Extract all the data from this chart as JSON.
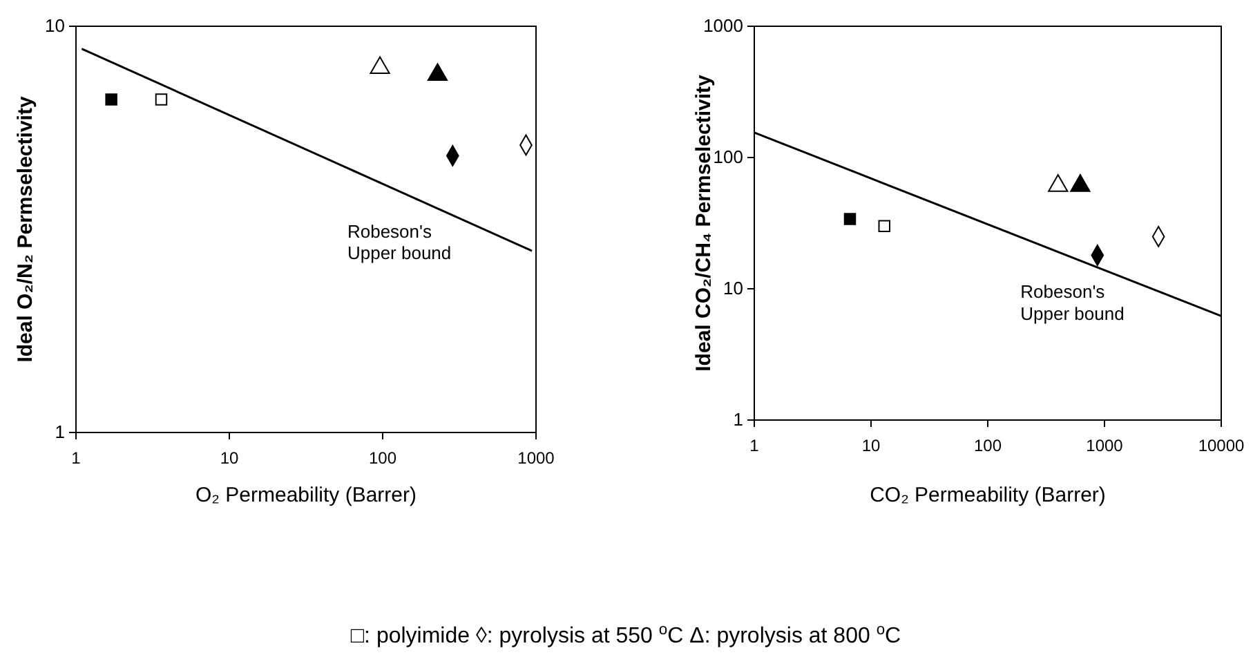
{
  "chart_data": [
    {
      "type": "scatter",
      "xlabel": "O₂ Permeability (Barrer)",
      "ylabel": "Ideal O₂/N₂ Permselectivity",
      "log": "xy",
      "xlim": [
        1,
        1000
      ],
      "ylim": [
        1,
        10
      ],
      "xticks": [
        1,
        10,
        100,
        1000
      ],
      "yticks": [
        1,
        10
      ],
      "grid": false,
      "series": [
        {
          "marker": "square",
          "color": "#000000",
          "x": [
            1.7
          ],
          "values": [
            6.6
          ]
        },
        {
          "marker": "square",
          "color": "#ffffff",
          "x": [
            3.6
          ],
          "values": [
            6.6
          ]
        },
        {
          "marker": "triangle",
          "color": "#ffffff",
          "x": [
            96
          ],
          "values": [
            7.9
          ]
        },
        {
          "marker": "triangle",
          "color": "#000000",
          "x": [
            228
          ],
          "values": [
            7.6
          ]
        },
        {
          "marker": "diamond",
          "color": "#000000",
          "x": [
            286
          ],
          "values": [
            4.8
          ]
        },
        {
          "marker": "diamond",
          "color": "#ffffff",
          "x": [
            860
          ],
          "values": [
            5.1
          ]
        },
        {
          "type": "line",
          "color": "#000000",
          "x": [
            1.09,
            940
          ],
          "values": [
            8.8,
            2.8
          ]
        }
      ],
      "annotations": [
        "Robeson's\nUpper bound",
        "□: polyimide   ◊: pyrolysis at 550 $^{o}$C  Δ: pyrolysis at 800 $^{o}$C"
      ]
    },
    {
      "type": "scatter",
      "xlabel": "CO₂ Permeability (Barrer)",
      "ylabel": "Ideal CO₂/CH₄ Permselectivity",
      "log": "xy",
      "xlim": [
        1,
        10000
      ],
      "ylim": [
        1,
        1000
      ],
      "xticks": [
        1,
        10,
        100,
        1000,
        10000
      ],
      "yticks": [
        1,
        10,
        100,
        1000
      ],
      "grid": false,
      "series": [
        {
          "marker": "square",
          "color": "#000000",
          "x": [
            6.6
          ],
          "values": [
            34
          ]
        },
        {
          "marker": "square",
          "color": "#ffffff",
          "x": [
            13
          ],
          "values": [
            30
          ]
        },
        {
          "marker": "triangle",
          "color": "#ffffff",
          "x": [
            400
          ],
          "values": [
            61
          ]
        },
        {
          "marker": "triangle",
          "color": "#000000",
          "x": [
            620
          ],
          "values": [
            61
          ]
        },
        {
          "marker": "diamond",
          "color": "#000000",
          "x": [
            870
          ],
          "values": [
            18
          ]
        },
        {
          "marker": "diamond",
          "color": "#ffffff",
          "x": [
            2900
          ],
          "values": [
            25
          ]
        },
        {
          "type": "line",
          "color": "#000000",
          "x": [
            1,
            10000
          ],
          "values": [
            155,
            6.2
          ]
        }
      ],
      "annotations": [
        "Robeson's\nUpper bound"
      ]
    }
  ]
}
